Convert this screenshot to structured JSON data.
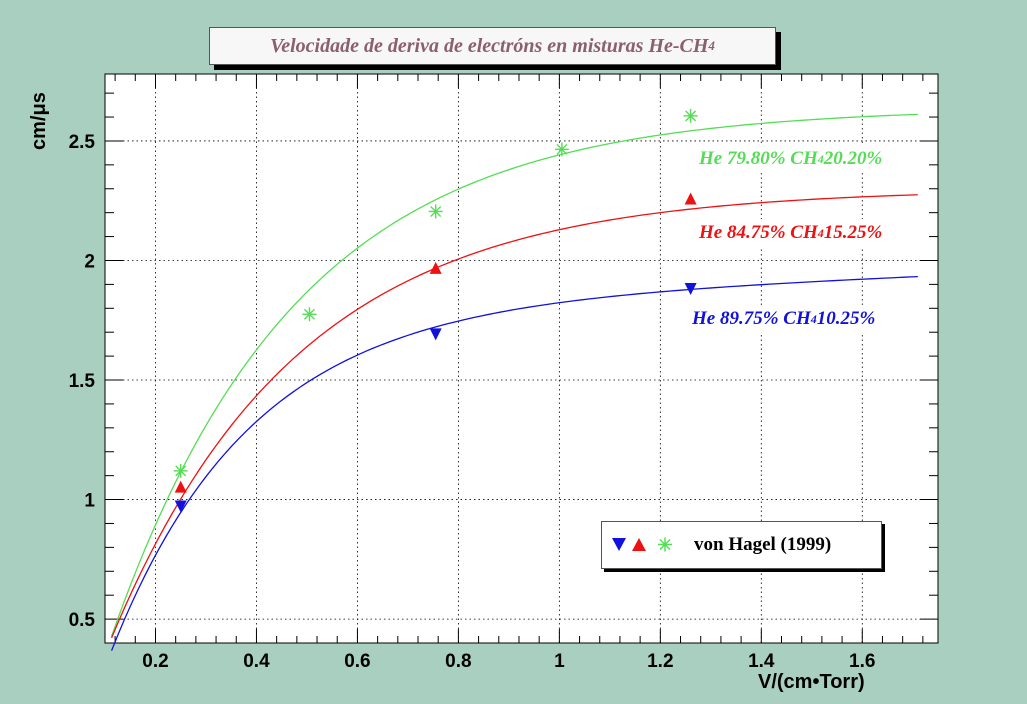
{
  "colors": {
    "background": "#a8cfc0",
    "plot_area": "#ffffff",
    "green": "#55dd55",
    "red": "#ee1111",
    "blue": "#1111dd",
    "title_text": "#8a5f6e"
  },
  "chart_data": {
    "type": "scatter",
    "title": "Velocidade de deriva de electróns en misturas He-CH",
    "title_sub": "4",
    "xlabel": "V/(cm•Torr)",
    "ylabel": "cm/μs",
    "xlim": [
      0.1,
      1.75
    ],
    "ylim": [
      0.4,
      2.78
    ],
    "x_ticks": [
      0.2,
      0.4,
      0.6,
      0.8,
      1,
      1.2,
      1.4,
      1.6
    ],
    "x_tick_labels": [
      "0.2",
      "0.4",
      "0.6",
      "0.8",
      "1",
      "1.2",
      "1.4",
      "1.6"
    ],
    "y_ticks": [
      0.5,
      1,
      1.5,
      2,
      2.5
    ],
    "y_tick_labels": [
      "0.5",
      "1",
      "1.5",
      "2",
      "2.5"
    ],
    "grid": true,
    "legend": {
      "placement": "bottom-right",
      "text": "von Hagel (1999)",
      "symbols": [
        "triangle-down",
        "triangle-up",
        "asterisk"
      ]
    },
    "series": [
      {
        "name_main": "He 79.80% CH",
        "name_sub": "4",
        "name_tail": " 20.20%",
        "color": "#55dd55",
        "marker": "asterisk",
        "points": [
          [
            0.25,
            1.12
          ],
          [
            0.505,
            1.775
          ],
          [
            0.755,
            2.205
          ],
          [
            1.005,
            2.465
          ],
          [
            1.26,
            2.605
          ]
        ],
        "fit": {
          "model": "saturation",
          "a": 2.64,
          "k": 2.72,
          "x0": 0.048,
          "x_range": [
            0.113,
            1.71
          ]
        }
      },
      {
        "name_main": "He 84.75% CH",
        "name_sub": "4",
        "name_tail": " 15.25%",
        "color": "#ee1111",
        "marker": "triangle-up",
        "points": [
          [
            0.25,
            1.05
          ],
          [
            0.755,
            1.965
          ],
          [
            1.26,
            2.255
          ]
        ],
        "fit": {
          "model": "saturation",
          "a": 2.3,
          "k": 2.7,
          "x0": 0.038,
          "x_range": [
            0.113,
            1.71
          ]
        }
      },
      {
        "name_main": "He 89.75% CH",
        "name_sub": "4",
        "name_tail": " 10.25%",
        "color": "#1111dd",
        "marker": "triangle-down",
        "points": [
          [
            0.25,
            0.975
          ],
          [
            0.755,
            1.695
          ],
          [
            1.26,
            1.885
          ]
        ],
        "fit": {
          "model": "saturation_linear",
          "a": 1.8,
          "k": 3.65,
          "x0": 0.052,
          "b": 0.08,
          "x_range": [
            0.113,
            1.71
          ]
        }
      }
    ]
  }
}
